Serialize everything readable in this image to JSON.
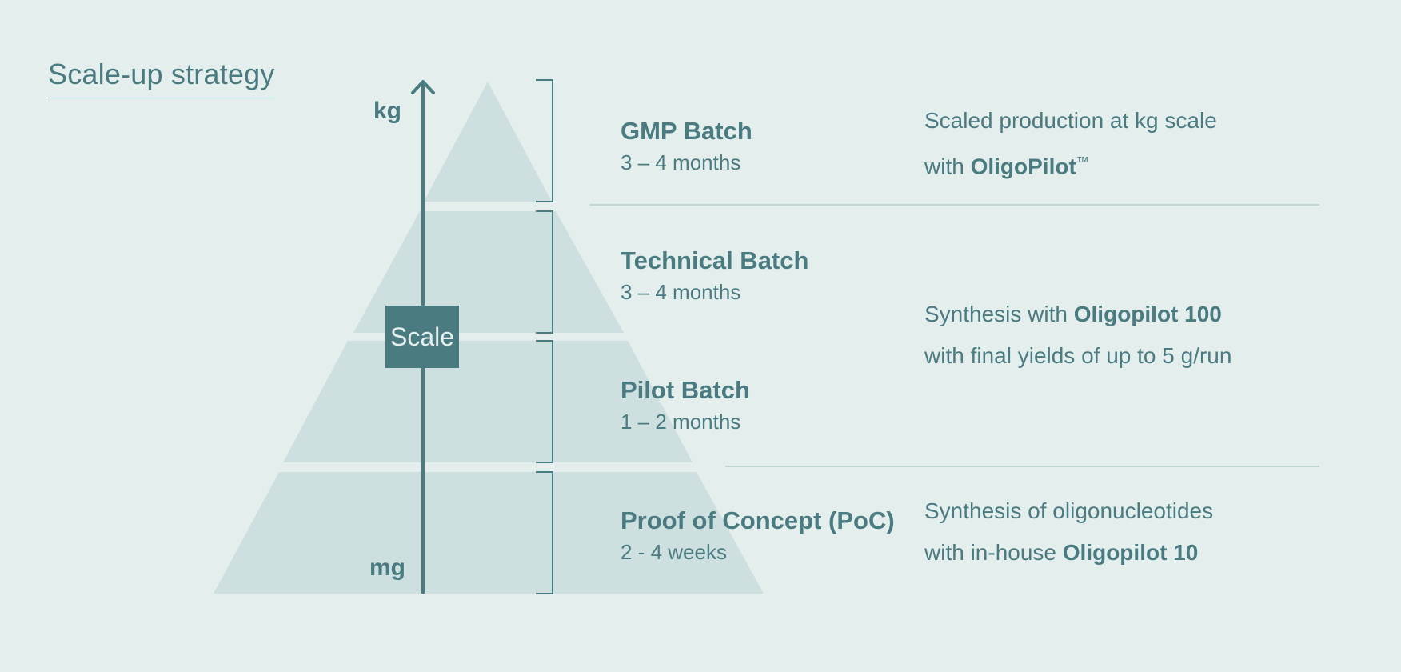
{
  "title": "Scale-up strategy",
  "axis": {
    "top_label": "kg",
    "bottom_label": "mg",
    "scale_label": "Scale"
  },
  "stages": [
    {
      "name": "GMP Batch",
      "duration": "3 – 4 months"
    },
    {
      "name": "Technical Batch",
      "duration": "3 – 4 months"
    },
    {
      "name": "Pilot Batch",
      "duration": "1 – 2 months"
    },
    {
      "name": "Proof of Concept (PoC)",
      "duration": "2 - 4 weeks"
    }
  ],
  "descriptions": {
    "gmp": {
      "line1": "Scaled production at kg scale",
      "line2_prefix": "with ",
      "line2_bold": "OligoPilot",
      "line2_suffix": "™"
    },
    "technical_pilot": {
      "line1_prefix": "Synthesis with ",
      "line1_bold": "Oligopilot 100",
      "line2": "with final yields of up to 5 g/run"
    },
    "poc": {
      "line1": "Synthesis of oligonucleotides",
      "line2_prefix": "with in-house ",
      "line2_bold": "Oligopilot 10"
    }
  },
  "colors": {
    "background": "#e4eeed",
    "pyramid": "#cddfdf",
    "accent": "#4a7b80",
    "divider": "#c3d6d6"
  }
}
